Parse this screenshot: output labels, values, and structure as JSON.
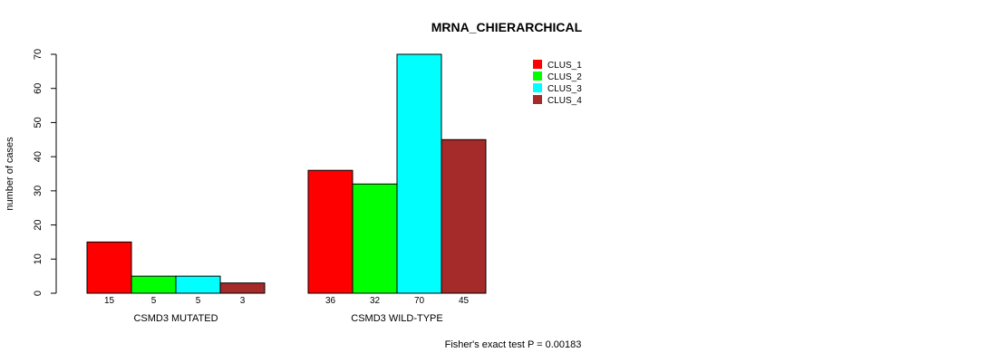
{
  "chart_data": {
    "type": "bar",
    "title": "MRNA_CHIERARCHICAL",
    "ylabel": "number of cases",
    "ylim": [
      0,
      70
    ],
    "yticks": [
      0,
      10,
      20,
      30,
      40,
      50,
      60,
      70
    ],
    "groups": [
      "CSMD3 MUTATED",
      "CSMD3 WILD-TYPE"
    ],
    "series": [
      {
        "name": "CLUS_1",
        "color": "#ff0000",
        "values": [
          15,
          36
        ]
      },
      {
        "name": "CLUS_2",
        "color": "#00ff00",
        "values": [
          5,
          32
        ]
      },
      {
        "name": "CLUS_3",
        "color": "#00ffff",
        "values": [
          5,
          70
        ]
      },
      {
        "name": "CLUS_4",
        "color": "#a52a2a",
        "values": [
          3,
          45
        ]
      }
    ],
    "legend_position": "top-right",
    "annotation": "Fisher's exact test P = 0.00183"
  }
}
